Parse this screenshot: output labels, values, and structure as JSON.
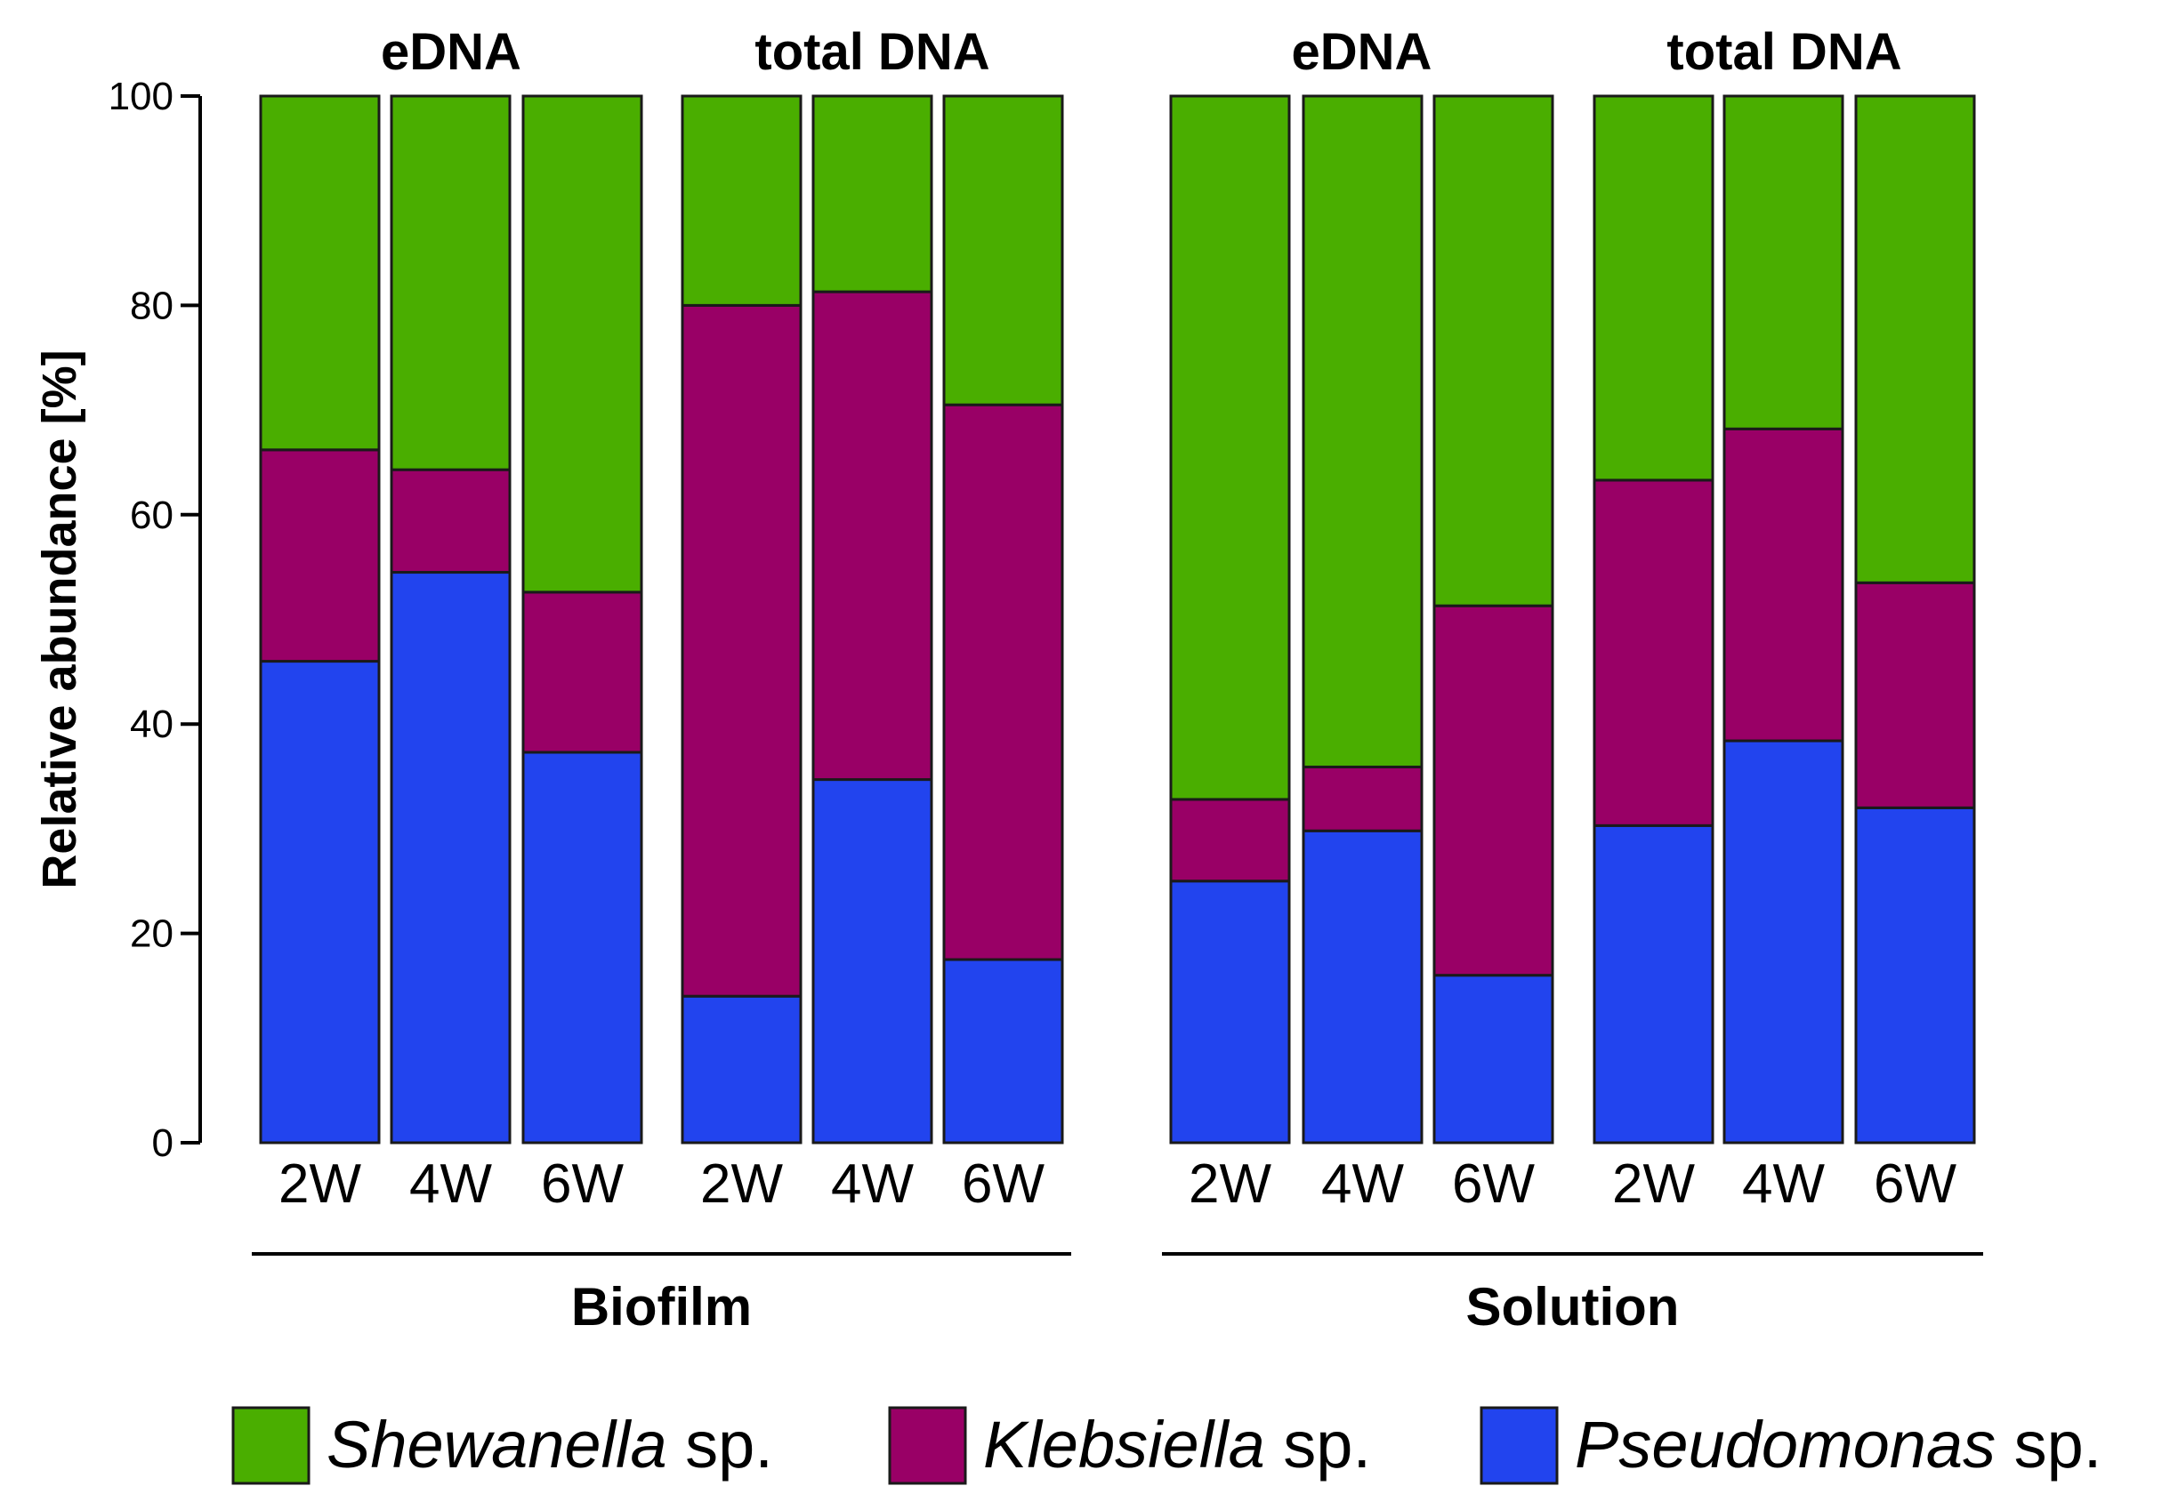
{
  "chart_data": {
    "type": "bar",
    "stacked": true,
    "title": "",
    "ylabel": "Relative abundance [%]",
    "ylim": [
      0,
      100
    ],
    "yticks": [
      "0",
      "20",
      "40",
      "60",
      "80",
      "100"
    ],
    "grid": false,
    "legend_position": "bottom",
    "sections": [
      {
        "label": "Biofilm",
        "groups": [
          {
            "label": "eDNA",
            "categories": [
              "2W",
              "4W",
              "6W"
            ],
            "series": [
              {
                "name": "Pseudomonas",
                "values": [
                  46,
                  54.5,
                  37.3
                ]
              },
              {
                "name": "Klebsiella",
                "values": [
                  20.2,
                  9.8,
                  15.3
                ]
              },
              {
                "name": "Shewanella",
                "values": [
                  33.8,
                  35.7,
                  47.4
                ]
              }
            ]
          },
          {
            "label": "total DNA",
            "categories": [
              "2W",
              "4W",
              "6W"
            ],
            "series": [
              {
                "name": "Pseudomonas",
                "values": [
                  14,
                  34.7,
                  17.5
                ]
              },
              {
                "name": "Klebsiella",
                "values": [
                  66,
                  46.6,
                  53
                ]
              },
              {
                "name": "Shewanella",
                "values": [
                  20,
                  18.7,
                  29.5
                ]
              }
            ]
          }
        ]
      },
      {
        "label": "Solution",
        "groups": [
          {
            "label": "eDNA",
            "categories": [
              "2W",
              "4W",
              "6W"
            ],
            "series": [
              {
                "name": "Pseudomonas",
                "values": [
                  25,
                  29.8,
                  16
                ]
              },
              {
                "name": "Klebsiella",
                "values": [
                  7.8,
                  6.1,
                  35.3
                ]
              },
              {
                "name": "Shewanella",
                "values": [
                  67.2,
                  64.1,
                  48.7
                ]
              }
            ]
          },
          {
            "label": "total DNA",
            "categories": [
              "2W",
              "4W",
              "6W"
            ],
            "series": [
              {
                "name": "Pseudomonas",
                "values": [
                  30.3,
                  38.4,
                  32
                ]
              },
              {
                "name": "Klebsiella",
                "values": [
                  33,
                  29.8,
                  21.5
                ]
              },
              {
                "name": "Shewanella",
                "values": [
                  36.7,
                  31.8,
                  46.5
                ]
              }
            ]
          }
        ]
      }
    ],
    "legend": [
      {
        "name": "Shewanella",
        "italic": "Shewanella",
        "suffix": " sp.",
        "color": "#4aae00"
      },
      {
        "name": "Klebsiella",
        "italic": "Klebsiella",
        "suffix": " sp.",
        "color": "#990066"
      },
      {
        "name": "Pseudomonas",
        "italic": "Pseudomonas",
        "suffix": " sp.",
        "color": "#2244ee"
      }
    ],
    "colors": {
      "Shewanella": "#4aae00",
      "Klebsiella": "#990066",
      "Pseudomonas": "#2244ee"
    }
  }
}
